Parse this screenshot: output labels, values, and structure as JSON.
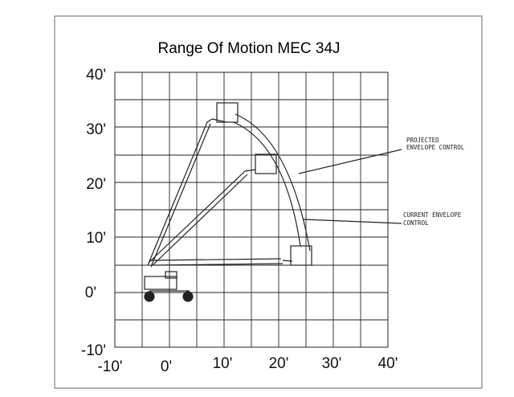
{
  "title": "Range Of Motion MEC 34J",
  "y_axis_labels": [
    "40'",
    "30'",
    "20'",
    "10'",
    "0'",
    "-10'"
  ],
  "x_axis_labels": [
    "-10'",
    "0'",
    "10'",
    "20'",
    "30'",
    "40'"
  ],
  "annotations": [
    {
      "lines": [
        "PROJECTED",
        "ENVELOPE CONTROL"
      ]
    },
    {
      "lines": [
        "CURRENT ENVELOPE",
        "CONTROL"
      ]
    }
  ]
}
